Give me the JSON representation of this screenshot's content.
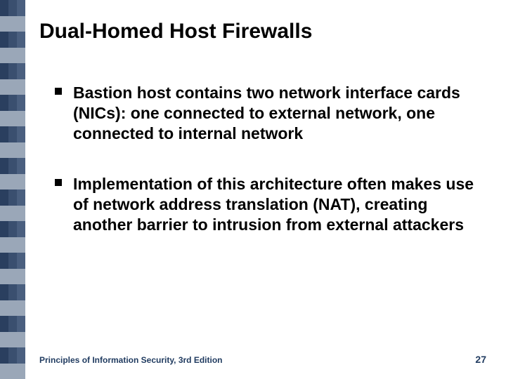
{
  "title": "Dual-Homed Host Firewalls",
  "bullets": [
    "Bastion host contains two network interface cards (NICs): one connected to external network, one connected to internal network",
    "Implementation of this architecture often makes use of network address translation (NAT), creating another barrier to intrusion from external attackers"
  ],
  "footer": {
    "left": "Principles of Information Security, 3rd Edition",
    "page": "27"
  },
  "styling": {
    "stripe": {
      "columns": 3,
      "rows": 24,
      "dark_color": "#2a3f5f",
      "light_color": "#9aa7b8",
      "column_shades": [
        "#2a3f5f",
        "#3a4f6f",
        "#4a5f7f"
      ]
    },
    "title_color": "#000000",
    "title_fontsize": 30,
    "body_fontsize": 23,
    "body_color": "#000000",
    "footer_color": "#1f3a5f",
    "footer_fontsize": 12,
    "background": "#ffffff"
  }
}
